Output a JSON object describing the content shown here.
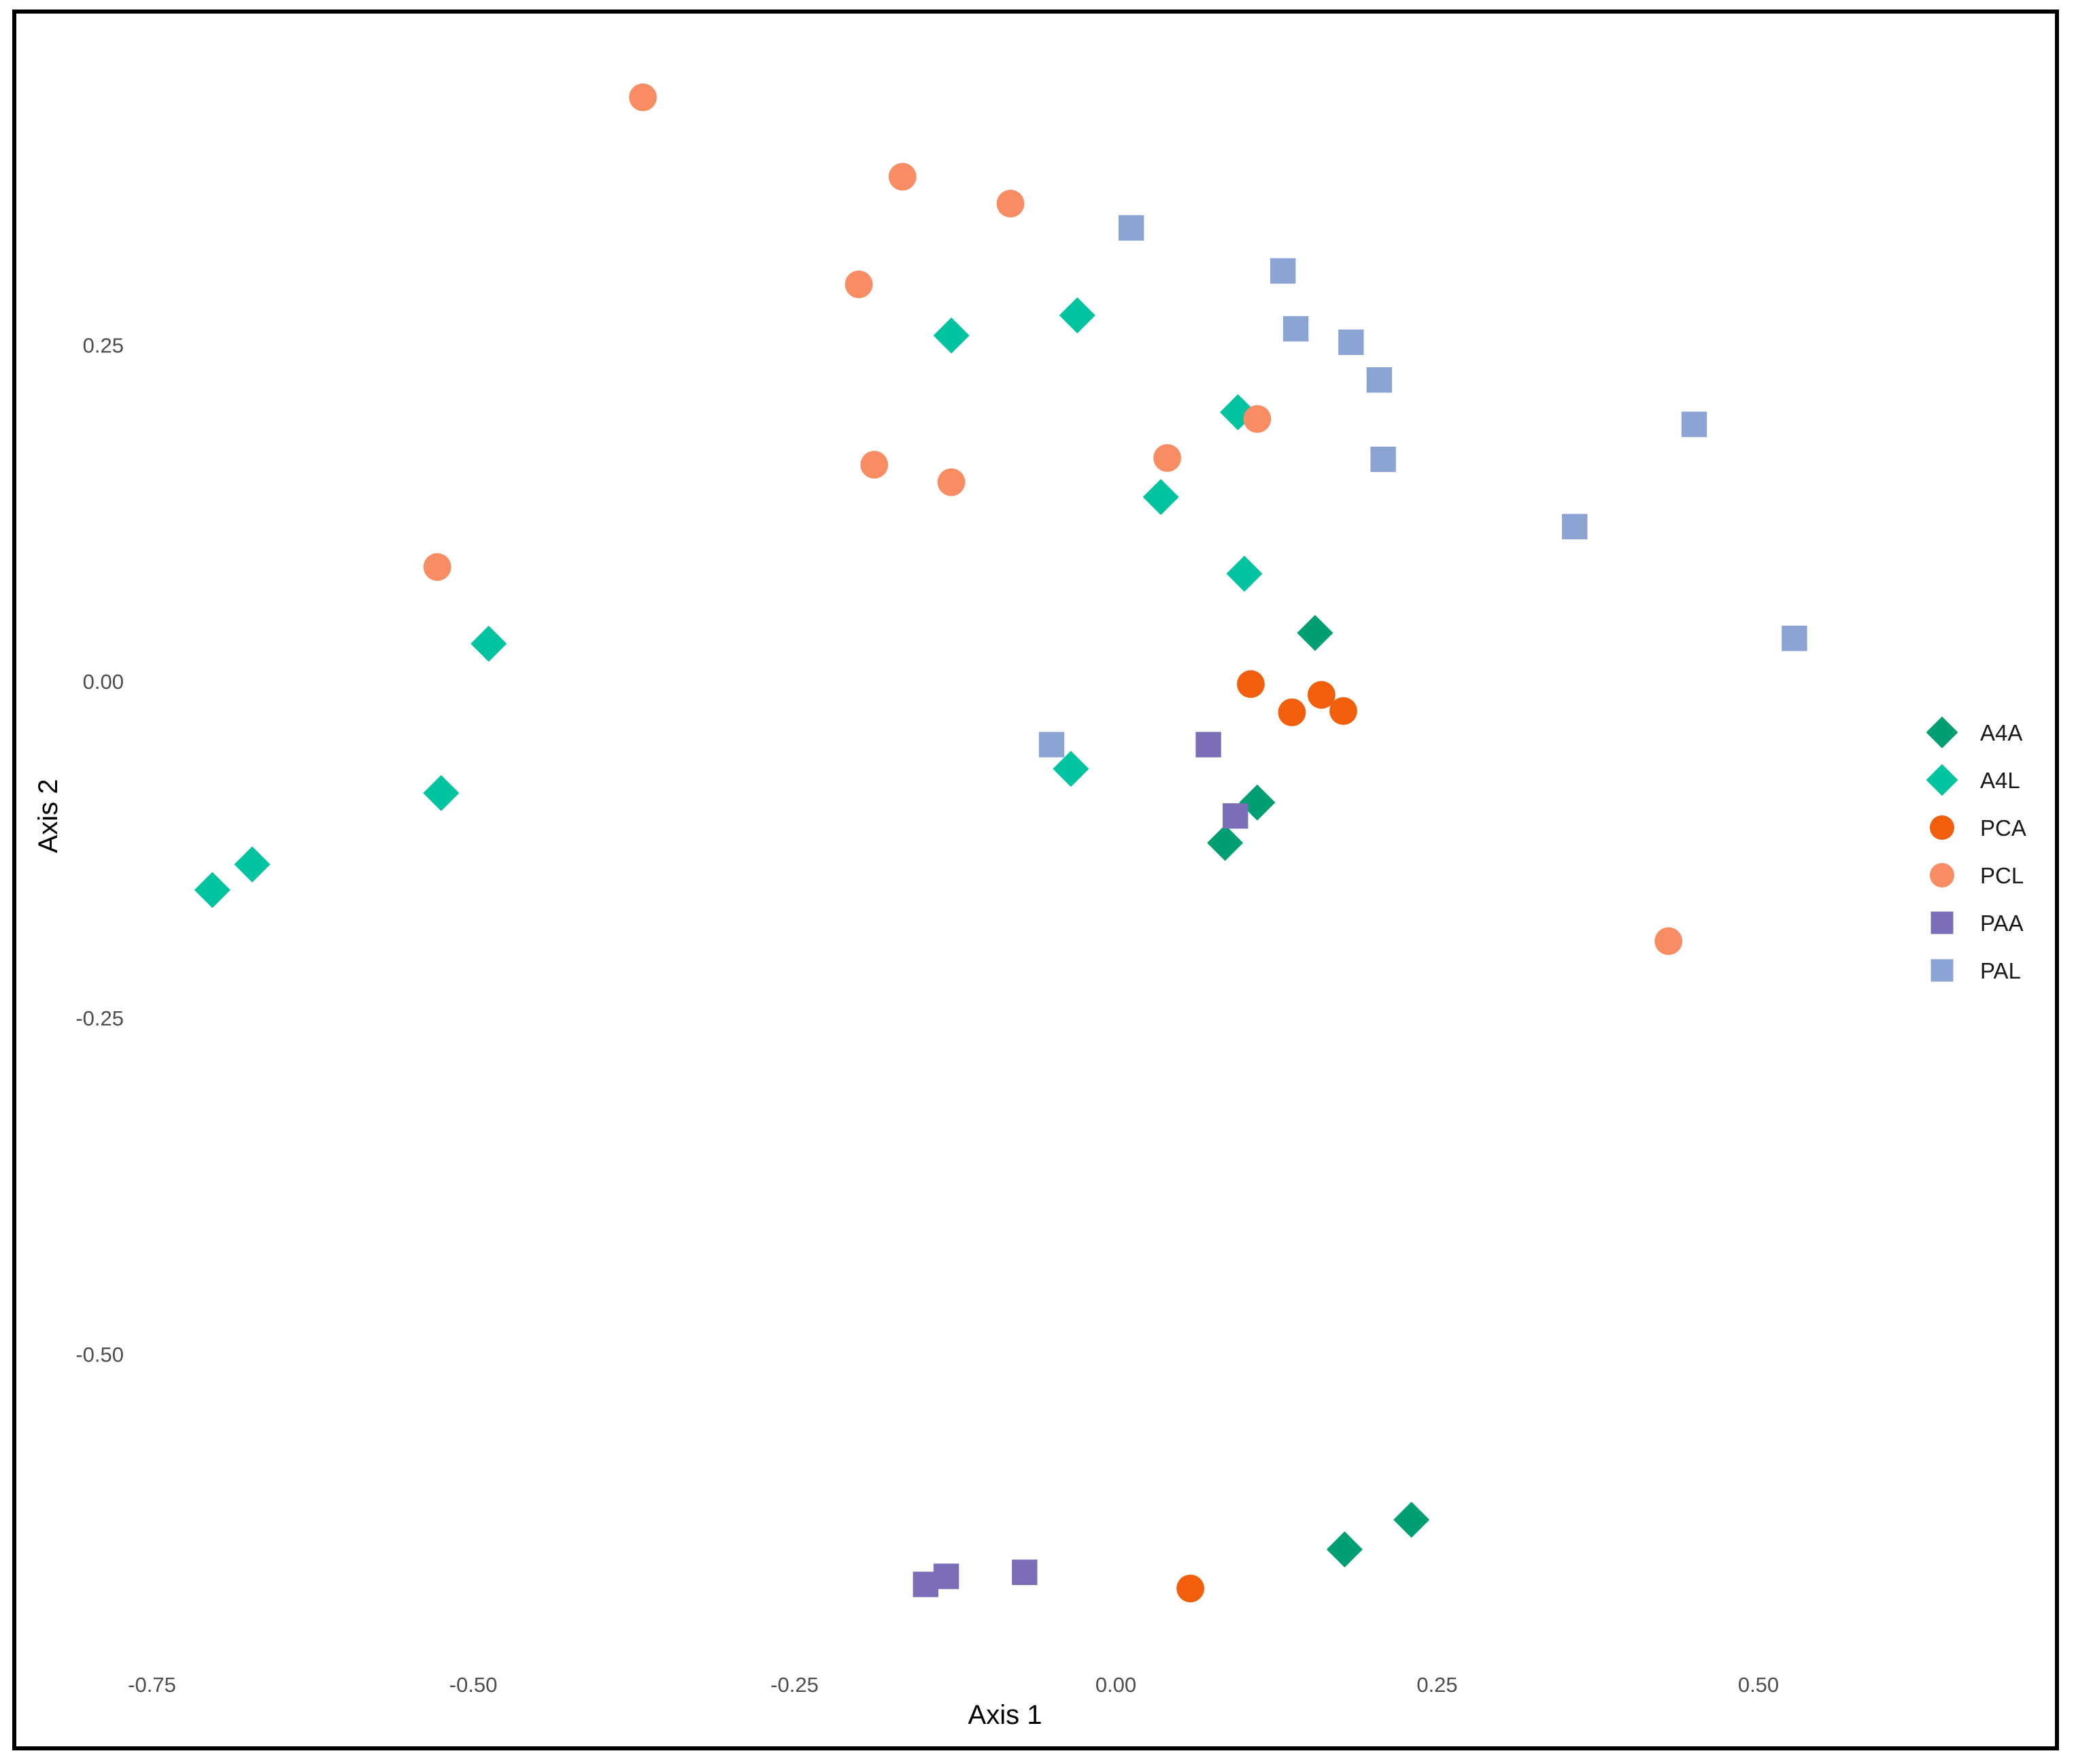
{
  "chart_data": {
    "type": "scatter",
    "xlabel": "Axis 1",
    "ylabel": "Axis 2",
    "xlim": [
      -0.8,
      0.72
    ],
    "ylim": [
      -0.74,
      0.43
    ],
    "x_ticks": [
      {
        "value": -0.75,
        "label": "-0.75"
      },
      {
        "value": -0.5,
        "label": "-0.50"
      },
      {
        "value": -0.25,
        "label": "-0.25"
      },
      {
        "value": 0.0,
        "label": "0.00"
      },
      {
        "value": 0.25,
        "label": "0.25"
      },
      {
        "value": 0.5,
        "label": "0.50"
      }
    ],
    "y_ticks": [
      {
        "value": 0.25,
        "label": "0.25"
      },
      {
        "value": 0.0,
        "label": "0.00"
      },
      {
        "value": -0.25,
        "label": "-0.25"
      },
      {
        "value": -0.5,
        "label": "-0.50"
      }
    ],
    "grid": false,
    "legend_position": "right",
    "series": [
      {
        "name": "A4A",
        "shape": "diamond",
        "color": "#009e73",
        "points": [
          {
            "x": 0.155,
            "y": 0.036
          },
          {
            "x": 0.11,
            "y": -0.09
          },
          {
            "x": 0.085,
            "y": -0.12
          },
          {
            "x": 0.23,
            "y": -0.623
          },
          {
            "x": 0.178,
            "y": -0.645
          }
        ]
      },
      {
        "name": "A4L",
        "shape": "diamond",
        "color": "#00c4a0",
        "points": [
          {
            "x": -0.03,
            "y": 0.272
          },
          {
            "x": -0.128,
            "y": 0.257
          },
          {
            "x": 0.095,
            "y": 0.2
          },
          {
            "x": 0.035,
            "y": 0.137
          },
          {
            "x": 0.1,
            "y": 0.08
          },
          {
            "x": -0.488,
            "y": 0.028
          },
          {
            "x": -0.035,
            "y": -0.065
          },
          {
            "x": -0.525,
            "y": -0.083
          },
          {
            "x": -0.672,
            "y": -0.136
          },
          {
            "x": -0.703,
            "y": -0.155
          }
        ]
      },
      {
        "name": "PCA",
        "shape": "circle",
        "color": "#f25f0c",
        "points": [
          {
            "x": 0.105,
            "y": -0.002
          },
          {
            "x": 0.16,
            "y": -0.01
          },
          {
            "x": 0.137,
            "y": -0.023
          },
          {
            "x": 0.177,
            "y": -0.022
          },
          {
            "x": 0.058,
            "y": -0.674
          }
        ]
      },
      {
        "name": "PCL",
        "shape": "circle",
        "color": "#f88c62",
        "points": [
          {
            "x": -0.368,
            "y": 0.434
          },
          {
            "x": -0.166,
            "y": 0.375
          },
          {
            "x": -0.082,
            "y": 0.355
          },
          {
            "x": -0.2,
            "y": 0.295
          },
          {
            "x": 0.11,
            "y": 0.195
          },
          {
            "x": 0.04,
            "y": 0.166
          },
          {
            "x": -0.188,
            "y": 0.161
          },
          {
            "x": -0.128,
            "y": 0.148
          },
          {
            "x": -0.528,
            "y": 0.085
          },
          {
            "x": 0.43,
            "y": -0.193
          }
        ]
      },
      {
        "name": "PAA",
        "shape": "square",
        "color": "#7b6db8",
        "points": [
          {
            "x": 0.072,
            "y": -0.047
          },
          {
            "x": 0.093,
            "y": -0.1
          },
          {
            "x": -0.071,
            "y": -0.662
          },
          {
            "x": -0.132,
            "y": -0.665
          },
          {
            "x": -0.148,
            "y": -0.671
          }
        ]
      },
      {
        "name": "PAL",
        "shape": "square",
        "color": "#8ba4d3",
        "points": [
          {
            "x": 0.012,
            "y": 0.337
          },
          {
            "x": 0.13,
            "y": 0.305
          },
          {
            "x": 0.14,
            "y": 0.262
          },
          {
            "x": 0.183,
            "y": 0.252
          },
          {
            "x": 0.205,
            "y": 0.224
          },
          {
            "x": 0.208,
            "y": 0.165
          },
          {
            "x": 0.45,
            "y": 0.191
          },
          {
            "x": 0.357,
            "y": 0.115
          },
          {
            "x": 0.528,
            "y": 0.032
          },
          {
            "x": -0.05,
            "y": -0.047
          }
        ]
      }
    ]
  }
}
